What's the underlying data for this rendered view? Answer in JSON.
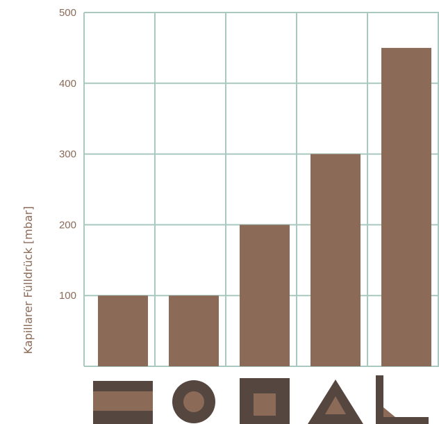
{
  "chart_data": {
    "type": "bar",
    "categories": [
      "shape-1",
      "shape-2",
      "shape-3",
      "shape-4",
      "shape-5"
    ],
    "values": [
      100,
      100,
      200,
      300,
      450
    ],
    "ylabel": "Kapillarer Fülldrück [mbar]",
    "ylim": [
      0,
      500
    ],
    "yticks": [
      100,
      200,
      300,
      400,
      500
    ],
    "grid": true,
    "colors": {
      "bar": "#8b6a58",
      "grid": "#a8c8c0",
      "icon_dark": "#564640",
      "icon_light": "#8b6a58",
      "label": "#8b6a58"
    },
    "category_icons": [
      "horizontal-layers-icon",
      "circle-in-square-icon",
      "square-in-square-icon",
      "triangle-icon",
      "l-corner-icon"
    ]
  }
}
